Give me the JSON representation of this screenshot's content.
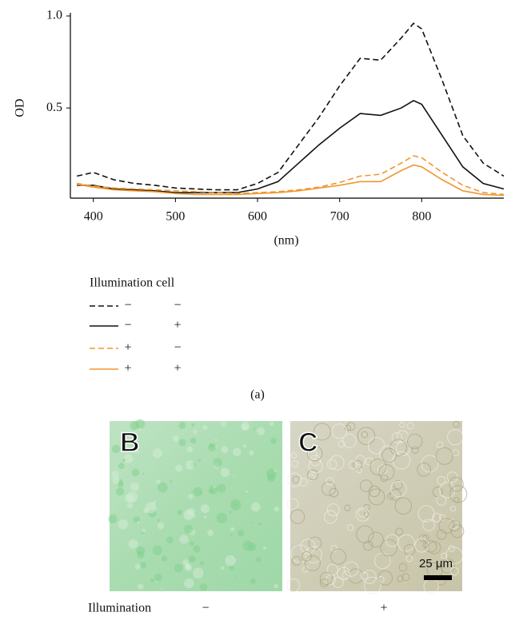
{
  "chart_data": {
    "type": "line",
    "y_label": "OD",
    "x_label": "(nm)",
    "xlim": [
      372,
      900
    ],
    "ylim": [
      0.01,
      1.0
    ],
    "xticks": [
      400,
      500,
      600,
      700,
      800
    ],
    "yticks": [
      0.5,
      {
        "value": 1,
        "label": "1.0"
      }
    ],
    "x": [
      380,
      400,
      425,
      450,
      475,
      500,
      525,
      550,
      575,
      600,
      625,
      650,
      675,
      700,
      725,
      750,
      775,
      790,
      800,
      825,
      850,
      875,
      900
    ],
    "series": [
      {
        "color": "#111111",
        "dashed": true,
        "values": [
          0.13,
          0.15,
          0.11,
          0.09,
          0.08,
          0.065,
          0.06,
          0.055,
          0.055,
          0.09,
          0.15,
          0.3,
          0.45,
          0.62,
          0.77,
          0.76,
          0.88,
          0.96,
          0.93,
          0.65,
          0.35,
          0.2,
          0.13
        ]
      },
      {
        "color": "#111111",
        "dashed": false,
        "values": [
          0.08,
          0.08,
          0.06,
          0.055,
          0.05,
          0.04,
          0.04,
          0.04,
          0.04,
          0.06,
          0.1,
          0.2,
          0.3,
          0.39,
          0.47,
          0.46,
          0.5,
          0.54,
          0.52,
          0.35,
          0.18,
          0.09,
          0.06
        ]
      },
      {
        "color": "#f0962e",
        "dashed": true,
        "values": [
          0.09,
          0.075,
          0.065,
          0.06,
          0.055,
          0.05,
          0.045,
          0.04,
          0.035,
          0.04,
          0.045,
          0.055,
          0.07,
          0.095,
          0.13,
          0.14,
          0.2,
          0.24,
          0.23,
          0.15,
          0.08,
          0.04,
          0.03
        ]
      },
      {
        "color": "#f0962e",
        "dashed": false,
        "values": [
          0.085,
          0.07,
          0.055,
          0.05,
          0.045,
          0.035,
          0.03,
          0.03,
          0.03,
          0.035,
          0.04,
          0.05,
          0.065,
          0.08,
          0.1,
          0.1,
          0.16,
          0.19,
          0.18,
          0.11,
          0.05,
          0.03,
          0.025
        ]
      }
    ],
    "legend": {
      "title": "Illumination cell",
      "rows": [
        [
          "−",
          "−"
        ],
        [
          "−",
          "+"
        ],
        [
          "+",
          "−"
        ],
        [
          "+",
          "+"
        ]
      ]
    },
    "caption": "(a)"
  },
  "panels": {
    "images": [
      {
        "label": "B"
      },
      {
        "label": "C",
        "scale_bar": "25 μm"
      }
    ],
    "row_label": "Illumination",
    "row_values": [
      "−",
      "+"
    ]
  }
}
